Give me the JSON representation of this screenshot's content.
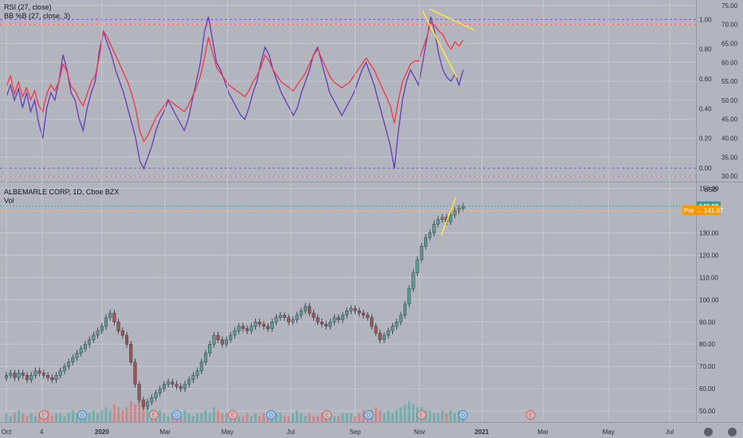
{
  "colors": {
    "background": "#b2b5be",
    "grid": "#c6c8ce",
    "rsi": "#673ab7",
    "bbpb": "#f23645",
    "trendline": "#ffeb3b",
    "bar_up": "#26a69a",
    "bar_down": "#ef5350",
    "candle_up_body": "#5b9c92",
    "candle_down_body": "#9b5555",
    "wick": "#2a2e39",
    "last_price_bg": "#26a69a",
    "pre_price_bg": "#ff9800",
    "dash_line": "#e57373",
    "earnings": "#ef5350",
    "dividend": "#2196f3"
  },
  "top_pane": {
    "legend": [
      "RSI (27, close)",
      "BB %B (27, close, 3)"
    ],
    "right_axis_ticks": [
      "75.00",
      "70.00",
      "65.00",
      "60.00",
      "55.00",
      "50.00",
      "45.00",
      "40.00",
      "35.00",
      "30.00"
    ],
    "right_axis_values": [
      75,
      70,
      65,
      60,
      55,
      50,
      45,
      40,
      35,
      30
    ],
    "left_axis_ticks": [
      "1.00",
      "0.80",
      "0.60",
      "0.40",
      "0.20",
      "0.00"
    ],
    "left_axis_values": [
      1.0,
      0.8,
      0.6,
      0.4,
      0.2,
      0.0
    ]
  },
  "bottom_pane": {
    "legend": [
      "ALBEMARLE CORP, 1D, Cboe BZX",
      "Vol"
    ],
    "currency": "USD",
    "axis_ticks": [
      "150.00",
      "140.00",
      "130.00",
      "120.00",
      "110.00",
      "100.00",
      "90.00",
      "80.00",
      "70.00",
      "60.00",
      "50.00"
    ],
    "axis_values": [
      150,
      140,
      130,
      120,
      110,
      100,
      90,
      80,
      70,
      60,
      50
    ],
    "last_price": "142.02",
    "pre_label": "Pre",
    "pre_price": "141.97"
  },
  "x_axis": {
    "labels": [
      "Oct",
      "4",
      "2020",
      "Mar",
      "May",
      "Jul",
      "Sep",
      "Nov",
      "2021",
      "Mar",
      "May",
      "Jul"
    ],
    "dates": [
      "2019-10-01",
      "2019-11-04",
      "2020-01-01",
      "2020-03-02",
      "2020-05-01",
      "2020-07-01",
      "2020-09-01",
      "2020-11-02",
      "2021-01-01",
      "2021-03-01",
      "2021-05-03",
      "2021-07-01"
    ]
  },
  "events": [
    {
      "type": "E",
      "date": "2019-11-06"
    },
    {
      "type": "D",
      "date": "2019-12-13"
    },
    {
      "type": "E",
      "date": "2020-02-20"
    },
    {
      "type": "D",
      "date": "2020-03-13"
    },
    {
      "type": "E",
      "date": "2020-05-06"
    },
    {
      "type": "D",
      "date": "2020-06-12"
    },
    {
      "type": "E",
      "date": "2020-08-05"
    },
    {
      "type": "D",
      "date": "2020-09-14"
    },
    {
      "type": "E",
      "date": "2020-11-04"
    },
    {
      "type": "D",
      "date": "2020-12-14"
    },
    {
      "type": "E",
      "date": "2021-02-17"
    }
  ],
  "chart_data": [
    {
      "type": "line",
      "title": "RSI (27, close) / BB %B (27, close, 3)",
      "x_start": "2019-10-01",
      "x_end": "2020-12-14",
      "series": [
        {
          "name": "RSI (27, close)",
          "axis": "right",
          "y": [
            51,
            54,
            50,
            53,
            48,
            52,
            47,
            50,
            44,
            40,
            48,
            52,
            50,
            55,
            62,
            58,
            52,
            50,
            45,
            42,
            48,
            52,
            55,
            63,
            68,
            65,
            62,
            58,
            55,
            52,
            48,
            44,
            40,
            34,
            32,
            35,
            38,
            42,
            45,
            47,
            50,
            48,
            46,
            44,
            42,
            45,
            50,
            55,
            60,
            68,
            72,
            66,
            60,
            58,
            55,
            52,
            50,
            48,
            46,
            45,
            48,
            52,
            55,
            60,
            64,
            62,
            58,
            55,
            52,
            50,
            48,
            46,
            48,
            52,
            55,
            58,
            62,
            64,
            60,
            56,
            52,
            50,
            48,
            46,
            48,
            50,
            52,
            55,
            58,
            60,
            57,
            54,
            50,
            46,
            42,
            38,
            32,
            42,
            50,
            55,
            58,
            56,
            54,
            60,
            66,
            72,
            68,
            62,
            58,
            56,
            55,
            57,
            54,
            58
          ]
        },
        {
          "name": "BB %B (27, close, 3)",
          "axis": "left",
          "y": [
            0.55,
            0.62,
            0.5,
            0.58,
            0.48,
            0.54,
            0.46,
            0.52,
            0.42,
            0.38,
            0.5,
            0.56,
            0.52,
            0.58,
            0.7,
            0.65,
            0.55,
            0.52,
            0.46,
            0.42,
            0.5,
            0.58,
            0.62,
            0.75,
            0.92,
            0.88,
            0.82,
            0.76,
            0.7,
            0.64,
            0.58,
            0.5,
            0.4,
            0.25,
            0.18,
            0.22,
            0.28,
            0.34,
            0.38,
            0.42,
            0.46,
            0.44,
            0.42,
            0.4,
            0.38,
            0.42,
            0.48,
            0.54,
            0.62,
            0.74,
            0.88,
            0.78,
            0.68,
            0.64,
            0.6,
            0.56,
            0.54,
            0.52,
            0.5,
            0.48,
            0.52,
            0.58,
            0.62,
            0.68,
            0.76,
            0.72,
            0.66,
            0.62,
            0.58,
            0.56,
            0.54,
            0.52,
            0.56,
            0.6,
            0.64,
            0.7,
            0.76,
            0.8,
            0.74,
            0.68,
            0.62,
            0.58,
            0.56,
            0.54,
            0.56,
            0.58,
            0.62,
            0.66,
            0.7,
            0.74,
            0.7,
            0.66,
            0.6,
            0.54,
            0.48,
            0.42,
            0.3,
            0.46,
            0.58,
            0.64,
            0.7,
            0.72,
            0.72,
            0.8,
            0.88,
            0.98,
            0.96,
            0.92,
            0.9,
            0.84,
            0.8,
            0.85,
            0.82,
            0.86
          ]
        }
      ],
      "ylim_right": [
        29,
        76
      ],
      "ylim_left": [
        -0.08,
        1.12
      ]
    },
    {
      "type": "candlestick",
      "title": "ALBEMARLE CORP, 1D, Cboe BZX",
      "x_start": "2019-10-01",
      "x_end": "2020-12-14",
      "close": [
        66,
        67,
        65,
        67,
        66,
        64,
        66,
        68,
        67,
        66,
        65,
        64,
        66,
        68,
        70,
        72,
        74,
        76,
        78,
        80,
        82,
        84,
        86,
        88,
        92,
        94,
        90,
        86,
        84,
        80,
        72,
        62,
        55,
        52,
        54,
        56,
        58,
        60,
        62,
        63,
        62,
        61,
        60,
        62,
        64,
        66,
        68,
        72,
        76,
        80,
        84,
        82,
        80,
        82,
        84,
        86,
        88,
        87,
        86,
        88,
        90,
        89,
        88,
        87,
        90,
        92,
        93,
        92,
        90,
        91,
        93,
        95,
        97,
        94,
        92,
        90,
        89,
        88,
        90,
        92,
        91,
        93,
        95,
        96,
        95,
        94,
        93,
        92,
        88,
        85,
        82,
        84,
        86,
        88,
        90,
        93,
        98,
        105,
        112,
        118,
        124,
        128,
        130,
        134,
        136,
        137,
        135,
        138,
        140,
        141,
        142
      ],
      "volume": [
        3,
        2,
        3,
        4,
        3,
        2,
        3,
        2,
        3,
        3,
        4,
        2,
        3,
        3,
        2,
        3,
        4,
        3,
        2,
        3,
        3,
        4,
        3,
        4,
        5,
        4,
        6,
        5,
        4,
        5,
        7,
        6,
        8,
        6,
        5,
        4,
        3,
        4,
        3,
        2,
        3,
        3,
        2,
        4,
        3,
        2,
        3,
        3,
        4,
        3,
        5,
        4,
        3,
        3,
        2,
        3,
        2,
        2,
        3,
        2,
        3,
        2,
        3,
        2,
        2,
        3,
        3,
        2,
        2,
        3,
        4,
        3,
        2,
        3,
        2,
        2,
        3,
        3,
        2,
        2,
        2,
        3,
        3,
        3,
        2,
        3,
        4,
        3,
        4,
        5,
        4,
        3,
        4,
        3,
        4,
        5,
        6,
        7,
        6,
        5,
        5,
        4,
        4,
        3,
        3,
        4,
        3,
        4,
        3,
        4,
        4
      ],
      "ylim": [
        45,
        152
      ],
      "last": 142.02,
      "pre": 141.97
    }
  ]
}
